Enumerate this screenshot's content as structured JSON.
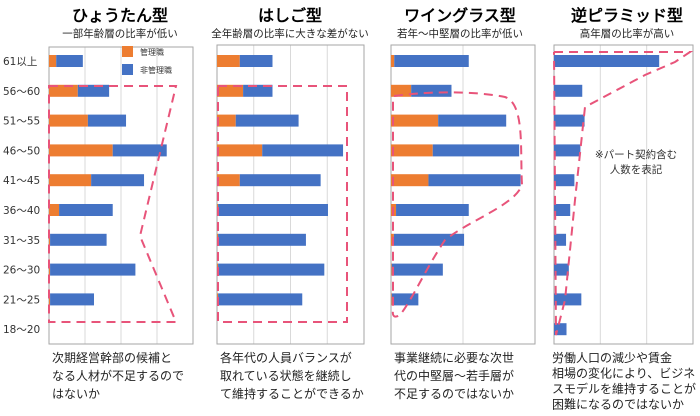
{
  "chart_data": {
    "type": "bar",
    "orientation": "horizontal",
    "stacked": true,
    "categories": [
      "61以上",
      "56～60",
      "51～55",
      "46～50",
      "41～45",
      "36～40",
      "31～35",
      "26～30",
      "21～25",
      "18～20"
    ],
    "legend": {
      "placement": "top-right",
      "entries": [
        "管理職",
        "非管理職"
      ]
    },
    "colors": {
      "管理職": "#ED7D31",
      "非管理職": "#4472C4",
      "highlight": "#E8547A"
    },
    "grid": true,
    "note": [
      "※パート契約含む",
      "人数を表記"
    ],
    "panels": [
      {
        "title": "ひょうたん型",
        "subtitle": "一部年齢層の比率が低い",
        "description": [
          "次期経営幹部の候補と",
          "なる人材が不足するので",
          "はないか"
        ],
        "xlim": [
          0,
          40
        ],
        "series": [
          {
            "name": "管理職",
            "values": [
              2,
              8,
              10.8,
              17.7,
              11.7,
              2.8,
              0.3,
              0.3,
              0.3,
              0
            ]
          },
          {
            "name": "非管理職",
            "values": [
              7.4,
              8.7,
              10.6,
              15,
              14.7,
              14.9,
              15.7,
              23.7,
              12.2,
              0
            ]
          }
        ]
      },
      {
        "title": "はしご型",
        "subtitle": "全年齢層の比率に大きな差がない",
        "description": [
          "各年代の人員バランスが",
          "取れている状態を継続し",
          "て維持することができるか"
        ],
        "xlim": [
          0,
          40
        ],
        "series": [
          {
            "name": "管理職",
            "values": [
              6.2,
              7.1,
              5.1,
              12.3,
              6.2,
              0.3,
              0.3,
              0.3,
              0.3,
              0
            ]
          },
          {
            "name": "非管理職",
            "values": [
              8.9,
              8,
              17.1,
              22,
              22,
              29.9,
              23.9,
              28.9,
              22.9,
              0
            ]
          }
        ]
      },
      {
        "title": "ワイングラス型",
        "subtitle": "若年～中堅層の比率が低い",
        "description": [
          "事業継続に必要な次世",
          "代の中堅層～若手層が",
          "不足するのではないか"
        ],
        "xlim": [
          0,
          40
        ],
        "series": [
          {
            "name": "管理職",
            "values": [
              0.9,
              5.6,
              13.1,
              11.6,
              10.4,
              1.4,
              0.8,
              0.2,
              0.2,
              0
            ]
          },
          {
            "name": "非管理職",
            "values": [
              20.7,
              11.2,
              18.9,
              24,
              25.6,
              20.2,
              19.5,
              14.2,
              7.4,
              0
            ]
          }
        ]
      },
      {
        "title": "逆ピラミッド型",
        "subtitle": "高年層の比率が高い",
        "description": [
          "労働人口の減少や賃金",
          "相場の変化により、ビジネ",
          "スモデルを維持することが",
          "困難になるのではないか"
        ],
        "xlim": [
          0,
          30
        ],
        "series": [
          {
            "name": "管理職",
            "values": [
              0,
              0,
              0,
              0,
              0,
              0,
              0,
              0,
              0,
              0
            ]
          },
          {
            "name": "非管理職",
            "values": [
              22.7,
              6.1,
              6.6,
              5.7,
              4.4,
              3.5,
              2.6,
              3.2,
              5.9,
              2.7
            ]
          }
        ]
      }
    ]
  }
}
